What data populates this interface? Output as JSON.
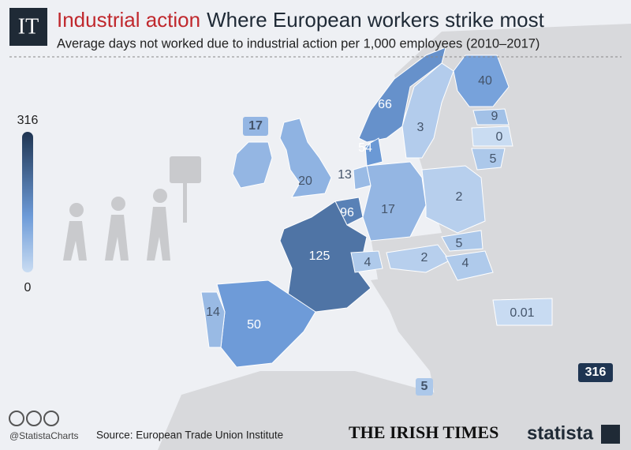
{
  "header": {
    "logo": "IT",
    "title_highlight": "Industrial action",
    "title": "Where European workers strike most",
    "subtitle": "Average days not worked due to industrial action per 1,000 employees (2010–2017)"
  },
  "legend": {
    "max": 316,
    "min": 0
  },
  "regions": [
    {
      "value": 17
    },
    {
      "value": 20
    },
    {
      "value": 66
    },
    {
      "value": 3
    },
    {
      "value": 40
    },
    {
      "value": 9
    },
    {
      "value": 0
    },
    {
      "value": 5
    },
    {
      "value": 54
    },
    {
      "value": 13
    },
    {
      "value": 96
    },
    {
      "value": 17
    },
    {
      "value": 2
    },
    {
      "value": 125
    },
    {
      "value": 4
    },
    {
      "value": 2
    },
    {
      "value": 5
    },
    {
      "value": 4
    },
    {
      "value": 0.01
    },
    {
      "value": 50
    },
    {
      "value": 14
    },
    {
      "value": 5
    },
    {
      "value": 316
    }
  ],
  "footer": {
    "handle": "@StatistaCharts",
    "source": "Source: European Trade Union Institute",
    "partner": "THE IRISH TIMES",
    "brand": "statista"
  }
}
